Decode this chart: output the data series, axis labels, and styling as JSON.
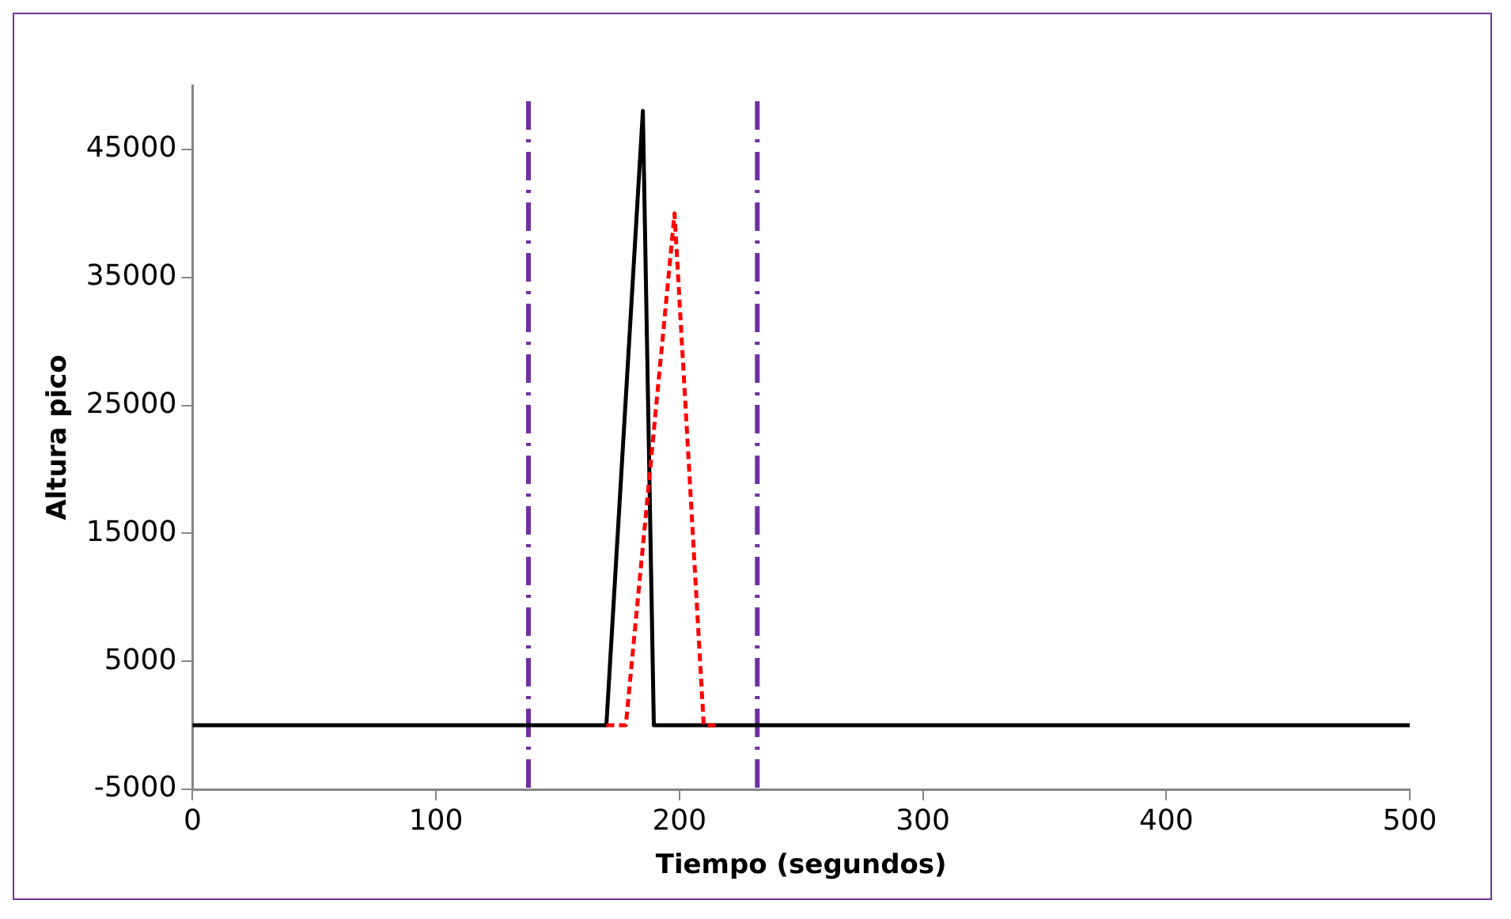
{
  "chart_data": {
    "type": "line",
    "xlabel": "Tiempo (segundos)",
    "ylabel": "Altura pico",
    "xlim": [
      0,
      500
    ],
    "xticks": [
      0,
      100,
      200,
      300,
      400,
      500
    ],
    "ylim": [
      -5000,
      50000
    ],
    "yticks": [
      -5000,
      5000,
      15000,
      25000,
      35000,
      45000
    ],
    "grid": false,
    "legend": false,
    "marker": "none",
    "series": [
      {
        "color": "#000000",
        "line_style": "solid",
        "x": [
          0,
          170,
          185,
          189.5,
          500
        ],
        "values": [
          0,
          0,
          48000,
          0,
          0
        ]
      },
      {
        "color": "#ff0000",
        "line_style": "dashed",
        "x": [
          170,
          178,
          198,
          210,
          216
        ],
        "values": [
          0,
          0,
          40000,
          0,
          0
        ]
      }
    ],
    "ref_lines": [
      {
        "axis": "x",
        "value": 138,
        "color": "#7030a0",
        "line_style": "dashed"
      },
      {
        "axis": "x",
        "value": 232,
        "color": "#7030a0",
        "line_style": "dashed"
      }
    ]
  }
}
